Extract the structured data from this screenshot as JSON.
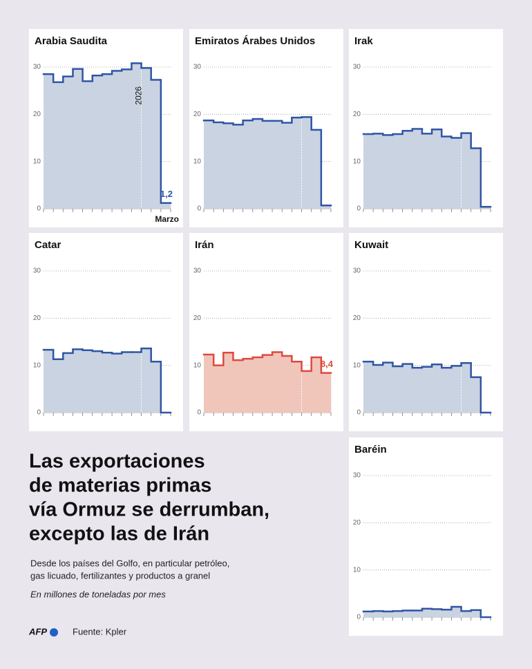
{
  "chart_data": [
    {
      "type": "step",
      "title": "Arabia Saudita",
      "color": "#2f55a4",
      "fill": "#cad3e2",
      "categories": [
        null,
        null,
        null,
        null,
        null,
        null,
        null,
        null,
        null,
        null,
        "2026",
        null,
        "Marzo"
      ],
      "values": [
        28.5,
        26.8,
        28,
        29.6,
        27,
        28.2,
        28.5,
        29.2,
        29.5,
        30.8,
        29.8,
        27.3,
        1.2
      ],
      "value_labels": [
        null,
        null,
        null,
        null,
        null,
        null,
        null,
        null,
        null,
        null,
        null,
        null,
        "1,2"
      ],
      "ylim": [
        0,
        30
      ],
      "yticks": [
        0,
        10,
        20,
        30
      ],
      "grid": true
    },
    {
      "type": "step",
      "title": "Emiratos Árabes Unidos",
      "color": "#2f55a4",
      "fill": "#cad3e2",
      "values": [
        18.7,
        18.3,
        18.1,
        17.8,
        18.7,
        19,
        18.6,
        18.6,
        18.2,
        19.3,
        19.4,
        16.7,
        0.7
      ],
      "ylim": [
        0,
        30
      ],
      "yticks": [
        0,
        10,
        20,
        30
      ],
      "grid": true
    },
    {
      "type": "step",
      "title": "Irak",
      "color": "#2f55a4",
      "fill": "#cad3e2",
      "values": [
        15.8,
        15.9,
        15.6,
        15.8,
        16.5,
        16.9,
        15.9,
        16.8,
        15.3,
        15,
        16,
        12.8,
        0.4
      ],
      "ylim": [
        0,
        30
      ],
      "yticks": [
        0,
        10,
        20,
        30
      ],
      "grid": true
    },
    {
      "type": "step",
      "title": "Catar",
      "color": "#2f55a4",
      "fill": "#cad3e2",
      "values": [
        13.3,
        11.3,
        12.6,
        13.4,
        13.2,
        13,
        12.7,
        12.5,
        12.8,
        12.8,
        13.6,
        10.8,
        0
      ],
      "ylim": [
        0,
        30
      ],
      "yticks": [
        0,
        10,
        20,
        30
      ],
      "grid": true
    },
    {
      "type": "step",
      "title": "Irán",
      "color": "#e0483d",
      "fill": "#f0c6bb",
      "values": [
        12.3,
        10,
        12.7,
        11.1,
        11.4,
        11.7,
        12.2,
        12.8,
        12,
        10.8,
        8.8,
        11.7,
        8.4
      ],
      "value_labels": [
        null,
        null,
        null,
        null,
        null,
        null,
        null,
        null,
        null,
        null,
        null,
        null,
        "8,4"
      ],
      "ylim": [
        0,
        30
      ],
      "yticks": [
        0,
        10,
        20,
        30
      ],
      "grid": true
    },
    {
      "type": "step",
      "title": "Kuwait",
      "color": "#2f55a4",
      "fill": "#cad3e2",
      "values": [
        10.8,
        10.1,
        10.6,
        9.8,
        10.3,
        9.5,
        9.7,
        10.2,
        9.5,
        9.9,
        10.5,
        7.5,
        0
      ],
      "ylim": [
        0,
        30
      ],
      "yticks": [
        0,
        10,
        20,
        30
      ],
      "grid": true
    },
    {
      "type": "step",
      "title": "Baréin",
      "color": "#2f55a4",
      "fill": "#cad3e2",
      "values": [
        1.2,
        1.3,
        1.2,
        1.3,
        1.4,
        1.4,
        1.8,
        1.7,
        1.6,
        2.2,
        1.3,
        1.5,
        0
      ],
      "ylim": [
        0,
        30
      ],
      "yticks": [
        0,
        10,
        20,
        30
      ],
      "grid": true
    }
  ],
  "title_lines": [
    "Las exportaciones",
    "de materias primas",
    "vía Ormuz se derrumban,",
    "excepto las de Irán"
  ],
  "subtitle_lines": [
    "Desde los países del Golfo, en particular petróleo,",
    "gas licuado, fertilizantes y productos a granel"
  ],
  "unit_note": "En millones de toneladas por mes",
  "logo": "AFP",
  "source": "Fuente: Kpler"
}
